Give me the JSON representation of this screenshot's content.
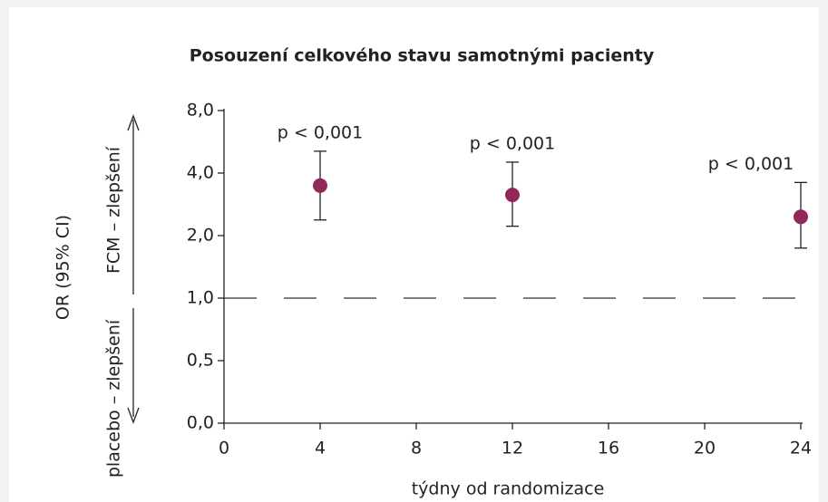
{
  "chart_data": {
    "type": "errorbar",
    "title": "Posouzení celkového stavu samotnými pacienty",
    "x_label": "týdny od randomizace",
    "y_label": "OR (95% CI)",
    "upper_label": "FCM – zlepšení",
    "lower_label": "placebo – zlepšení",
    "x": [
      4,
      12,
      24
    ],
    "values": [
      3.6,
      3.3,
      2.6
    ],
    "lower": [
      2.5,
      2.3,
      1.8
    ],
    "upper": [
      5.4,
      4.7,
      3.7
    ],
    "annotations": [
      "p < 0,001",
      "p < 0,001",
      "p < 0,001"
    ],
    "color": "#93275a",
    "xlim": [
      0,
      24
    ],
    "xticks": [
      0,
      4,
      8,
      12,
      16,
      20,
      24
    ],
    "ylim": [
      0,
      8
    ],
    "yticks": [
      {
        "value": 0,
        "label": "0,0"
      },
      {
        "value": 0.5,
        "label": "0,5"
      },
      {
        "value": 1,
        "label": "1,0"
      },
      {
        "value": 2,
        "label": "2,0"
      },
      {
        "value": 4,
        "label": "4,0"
      },
      {
        "value": 8,
        "label": "8,0"
      }
    ],
    "reference_line": 1
  }
}
